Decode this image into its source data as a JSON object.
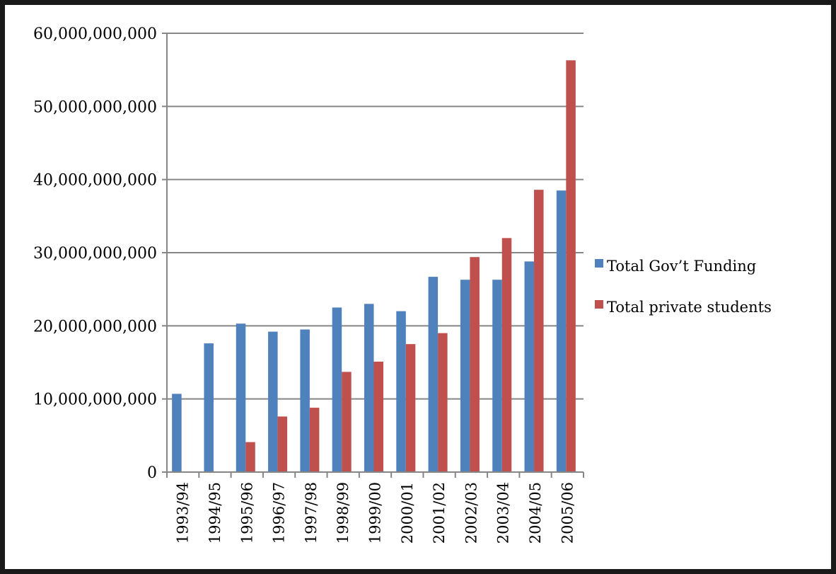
{
  "chart_data": {
    "type": "bar",
    "categories": [
      "1993/94",
      "1994/95",
      "1995/96",
      "1996/97",
      "1997/98",
      "1998/99",
      "1999/00",
      "2000/01",
      "2001/02",
      "2002/03",
      "2003/04",
      "2004/05",
      "2005/06"
    ],
    "series": [
      {
        "name": "Total Gov’t Funding",
        "color": "#4F81BD",
        "values": [
          10700000000,
          17600000000,
          20300000000,
          19200000000,
          19500000000,
          22500000000,
          23000000000,
          22000000000,
          26700000000,
          26300000000,
          26300000000,
          28800000000,
          38500000000
        ]
      },
      {
        "name": "Total private students",
        "color": "#C0504D",
        "values": [
          0,
          0,
          4100000000,
          7600000000,
          8800000000,
          13700000000,
          15100000000,
          17500000000,
          19000000000,
          29400000000,
          32000000000,
          38600000000,
          56300000000
        ]
      }
    ],
    "ylim": [
      0,
      60000000000
    ],
    "yticks": [
      0,
      10000000000,
      20000000000,
      30000000000,
      40000000000,
      50000000000,
      60000000000
    ],
    "ytick_labels": [
      "0",
      "10,000,000,000",
      "20,000,000,000",
      "30,000,000,000",
      "40,000,000,000",
      "50,000,000,000",
      "60,000,000,000"
    ],
    "grid": true,
    "legend_position": "right",
    "title": "",
    "xlabel": "",
    "ylabel": ""
  }
}
